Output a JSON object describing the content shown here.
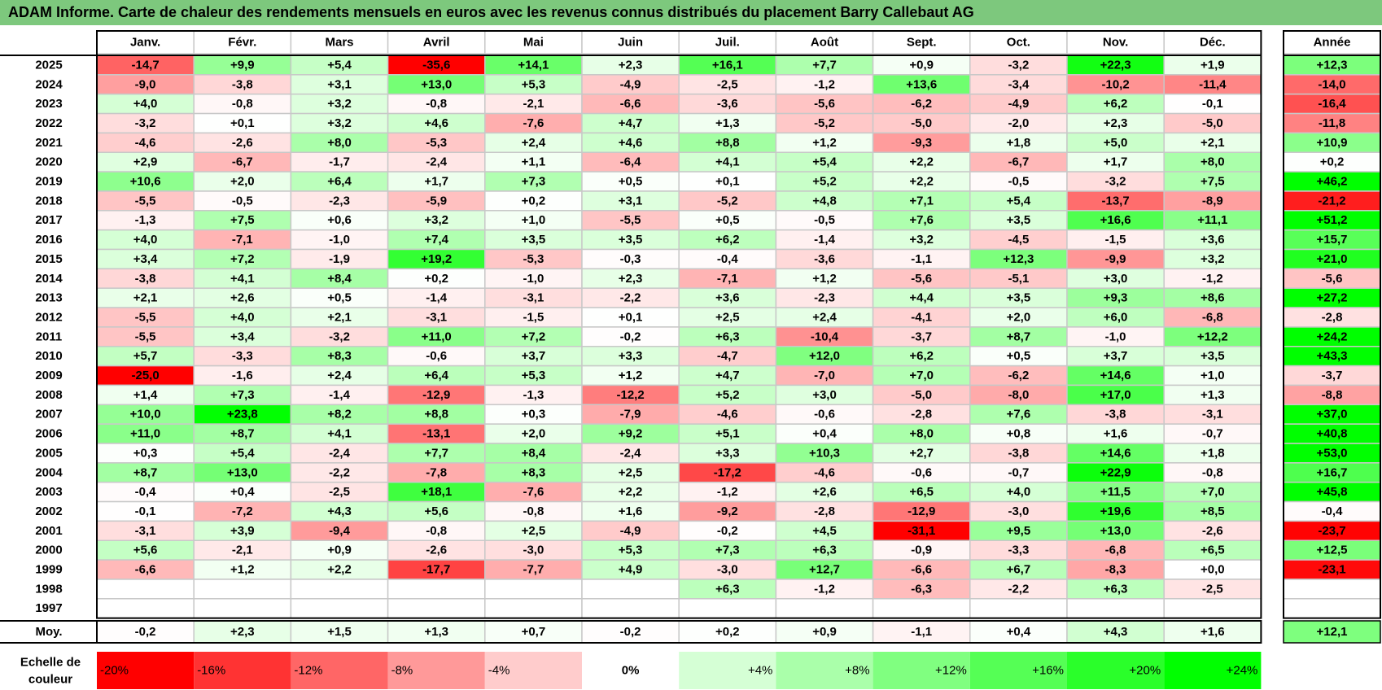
{
  "title": "ADAM Informe. Carte de chaleur des rendements mensuels en euros avec les revenus connus distribués du placement Barry Callebaut AG",
  "chart_data": {
    "type": "heatmap",
    "title": "ADAM Informe. Carte de chaleur des rendements mensuels en euros avec les revenus connus distribués du placement Barry Callebaut AG",
    "columns": [
      "Janv.",
      "Févr.",
      "Mars",
      "Avril",
      "Mai",
      "Juin",
      "Juil.",
      "Août",
      "Sept.",
      "Oct.",
      "Nov.",
      "Déc."
    ],
    "year_column": "Année",
    "rows": [
      {
        "year": "2025",
        "values": [
          -14.7,
          9.9,
          5.4,
          -35.6,
          14.1,
          2.3,
          16.1,
          7.7,
          0.9,
          -3.2,
          22.3,
          1.9
        ],
        "annual": 12.3
      },
      {
        "year": "2024",
        "values": [
          -9.0,
          -3.8,
          3.1,
          13.0,
          5.3,
          -4.9,
          -2.5,
          -1.2,
          13.6,
          -3.4,
          -10.2,
          -11.4
        ],
        "annual": -14.0
      },
      {
        "year": "2023",
        "values": [
          4.0,
          -0.8,
          3.2,
          -0.8,
          -2.1,
          -6.6,
          -3.6,
          -5.6,
          -6.2,
          -4.9,
          6.2,
          -0.1
        ],
        "annual": -16.4
      },
      {
        "year": "2022",
        "values": [
          -3.2,
          0.1,
          3.2,
          4.6,
          -7.6,
          4.7,
          1.3,
          -5.2,
          -5.0,
          -2.0,
          2.3,
          -5.0
        ],
        "annual": -11.8
      },
      {
        "year": "2021",
        "values": [
          -4.6,
          -2.6,
          8.0,
          -5.3,
          2.4,
          4.6,
          8.8,
          1.2,
          -9.3,
          1.8,
          5.0,
          2.1
        ],
        "annual": 10.9
      },
      {
        "year": "2020",
        "values": [
          2.9,
          -6.7,
          -1.7,
          -2.4,
          1.1,
          -6.4,
          4.1,
          5.4,
          2.2,
          -6.7,
          1.7,
          8.0
        ],
        "annual": 0.2
      },
      {
        "year": "2019",
        "values": [
          10.6,
          2.0,
          6.4,
          1.7,
          7.3,
          0.5,
          0.1,
          5.2,
          2.2,
          -0.5,
          -3.2,
          7.5
        ],
        "annual": 46.2
      },
      {
        "year": "2018",
        "values": [
          -5.5,
          -0.5,
          -2.3,
          -5.9,
          0.2,
          3.1,
          -5.2,
          4.8,
          7.1,
          5.4,
          -13.7,
          -8.9
        ],
        "annual": -21.2
      },
      {
        "year": "2017",
        "values": [
          -1.3,
          7.5,
          0.6,
          3.2,
          1.0,
          -5.5,
          0.5,
          -0.5,
          7.6,
          3.5,
          16.6,
          11.1
        ],
        "annual": 51.2
      },
      {
        "year": "2016",
        "values": [
          4.0,
          -7.1,
          -1.0,
          7.4,
          3.5,
          3.5,
          6.2,
          -1.4,
          3.2,
          -4.5,
          -1.5,
          3.6
        ],
        "annual": 15.7
      },
      {
        "year": "2015",
        "values": [
          3.4,
          7.2,
          -1.9,
          19.2,
          -5.3,
          -0.3,
          -0.4,
          -3.6,
          -1.1,
          12.3,
          -9.9,
          3.2
        ],
        "annual": 21.0
      },
      {
        "year": "2014",
        "values": [
          -3.8,
          4.1,
          8.4,
          0.2,
          -1.0,
          2.3,
          -7.1,
          1.2,
          -5.6,
          -5.1,
          3.0,
          -1.2
        ],
        "annual": -5.6
      },
      {
        "year": "2013",
        "values": [
          2.1,
          2.6,
          0.5,
          -1.4,
          -3.1,
          -2.2,
          3.6,
          -2.3,
          4.4,
          3.5,
          9.3,
          8.6
        ],
        "annual": 27.2
      },
      {
        "year": "2012",
        "values": [
          -5.5,
          4.0,
          2.1,
          -3.1,
          -1.5,
          0.1,
          2.5,
          2.4,
          -4.1,
          2.0,
          6.0,
          -6.8
        ],
        "annual": -2.8
      },
      {
        "year": "2011",
        "values": [
          -5.5,
          3.4,
          -3.2,
          11.0,
          7.2,
          -0.2,
          6.3,
          -10.4,
          -3.7,
          8.7,
          -1.0,
          12.2
        ],
        "annual": 24.2
      },
      {
        "year": "2010",
        "values": [
          5.7,
          -3.3,
          8.3,
          -0.6,
          3.7,
          3.3,
          -4.7,
          12.0,
          6.2,
          0.5,
          3.7,
          3.5
        ],
        "annual": 43.3
      },
      {
        "year": "2009",
        "values": [
          -25.0,
          -1.6,
          2.4,
          6.4,
          5.3,
          1.2,
          4.7,
          -7.0,
          7.0,
          -6.2,
          14.6,
          1.0
        ],
        "annual": -3.7
      },
      {
        "year": "2008",
        "values": [
          1.4,
          7.3,
          -1.4,
          -12.9,
          -1.3,
          -12.2,
          5.2,
          3.0,
          -5.0,
          -8.0,
          17.0,
          1.3
        ],
        "annual": -8.8
      },
      {
        "year": "2007",
        "values": [
          10.0,
          23.8,
          8.2,
          8.8,
          0.3,
          -7.9,
          -4.6,
          -0.6,
          -2.8,
          7.6,
          -3.8,
          -3.1
        ],
        "annual": 37.0
      },
      {
        "year": "2006",
        "values": [
          11.0,
          8.7,
          4.1,
          -13.1,
          2.0,
          9.2,
          5.1,
          0.4,
          8.0,
          0.8,
          1.6,
          -0.7
        ],
        "annual": 40.8
      },
      {
        "year": "2005",
        "values": [
          0.3,
          5.4,
          -2.4,
          7.7,
          8.4,
          -2.4,
          3.3,
          10.3,
          2.7,
          -3.8,
          14.6,
          1.8
        ],
        "annual": 53.0
      },
      {
        "year": "2004",
        "values": [
          8.7,
          13.0,
          -2.2,
          -7.8,
          8.3,
          2.5,
          -17.2,
          -4.6,
          -0.6,
          -0.7,
          22.9,
          -0.8
        ],
        "annual": 16.7
      },
      {
        "year": "2003",
        "values": [
          -0.4,
          0.4,
          -2.5,
          18.1,
          -7.6,
          2.2,
          -1.2,
          2.6,
          6.5,
          4.0,
          11.5,
          7.0
        ],
        "annual": 45.8
      },
      {
        "year": "2002",
        "values": [
          -0.1,
          -7.2,
          4.3,
          5.6,
          -0.8,
          1.6,
          -9.2,
          -2.8,
          -12.9,
          -3.0,
          19.6,
          8.5
        ],
        "annual": -0.4
      },
      {
        "year": "2001",
        "values": [
          -3.1,
          3.9,
          -9.4,
          -0.8,
          2.5,
          -4.9,
          -0.2,
          4.5,
          -31.1,
          9.5,
          13.0,
          -2.6
        ],
        "annual": -23.7
      },
      {
        "year": "2000",
        "values": [
          5.6,
          -2.1,
          0.9,
          -2.6,
          -3.0,
          5.3,
          7.3,
          6.3,
          -0.9,
          -3.3,
          -6.8,
          6.5
        ],
        "annual": 12.5
      },
      {
        "year": "1999",
        "values": [
          -6.6,
          1.2,
          2.2,
          -17.7,
          -7.7,
          4.9,
          -3.0,
          12.7,
          -6.6,
          6.7,
          -8.3,
          0.0
        ],
        "annual": -23.1
      },
      {
        "year": "1998",
        "values": [
          null,
          null,
          null,
          null,
          null,
          null,
          6.3,
          -1.2,
          -6.3,
          -2.2,
          6.3,
          -2.5
        ],
        "annual": null
      },
      {
        "year": "1997",
        "values": [
          null,
          null,
          null,
          null,
          null,
          null,
          null,
          null,
          null,
          null,
          null,
          null
        ],
        "annual": null
      }
    ],
    "average": {
      "label": "Moy.",
      "values": [
        -0.2,
        2.3,
        1.5,
        1.3,
        0.7,
        -0.2,
        0.2,
        0.9,
        -1.1,
        0.4,
        4.3,
        1.6
      ],
      "annual": 12.1
    },
    "scale": {
      "label": "Echelle de couleur",
      "steps": [
        "-20%",
        "-16%",
        "-12%",
        "-8%",
        "-4%",
        "0%",
        "+4%",
        "+8%",
        "+12%",
        "+16%",
        "+20%",
        "+24%"
      ],
      "step_values": [
        -20,
        -16,
        -12,
        -8,
        -4,
        0,
        4,
        8,
        12,
        16,
        20,
        24
      ]
    },
    "colors": {
      "negative_max": "#ff0000",
      "neutral": "#ffffff",
      "positive_max": "#00ff00",
      "title_bg": "#7dc87d",
      "grid": "#c8c8c8",
      "border": "#000000"
    }
  }
}
